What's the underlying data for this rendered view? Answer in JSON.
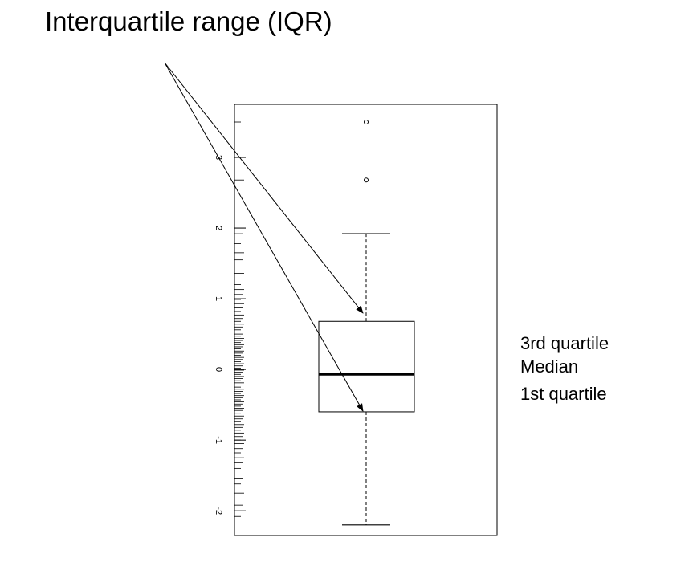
{
  "annotation_title": "Interquartile range (IQR)",
  "labels": {
    "third_quartile": "3rd quartile",
    "median": "Median",
    "first_quartile": "1st quartile"
  },
  "chart_data": {
    "type": "boxplot",
    "orientation": "vertical",
    "y_ticks": [
      -2,
      -1,
      0,
      1,
      2,
      3
    ],
    "y_tick_labels": [
      "-2",
      "-1",
      "0",
      "1",
      "2",
      "3"
    ],
    "ylim": [
      -2.35,
      3.75
    ],
    "box": {
      "q1": -0.6,
      "median": -0.07,
      "q3": 0.68,
      "whisker_low": -2.2,
      "whisker_high": 1.92,
      "outliers": [
        2.68,
        3.5
      ]
    },
    "rug": [
      -2.08,
      -1.92,
      -1.75,
      -1.62,
      -1.55,
      -1.48,
      -1.4,
      -1.32,
      -1.25,
      -1.18,
      -1.12,
      -1.05,
      -1.0,
      -0.95,
      -0.9,
      -0.86,
      -0.82,
      -0.78,
      -0.74,
      -0.7,
      -0.66,
      -0.62,
      -0.58,
      -0.55,
      -0.52,
      -0.49,
      -0.46,
      -0.43,
      -0.4,
      -0.37,
      -0.34,
      -0.31,
      -0.28,
      -0.25,
      -0.22,
      -0.19,
      -0.16,
      -0.13,
      -0.1,
      -0.07,
      -0.04,
      -0.01,
      0.02,
      0.05,
      0.08,
      0.11,
      0.14,
      0.17,
      0.2,
      0.23,
      0.26,
      0.29,
      0.32,
      0.35,
      0.38,
      0.41,
      0.44,
      0.47,
      0.5,
      0.53,
      0.56,
      0.6,
      0.64,
      0.68,
      0.72,
      0.77,
      0.82,
      0.87,
      0.93,
      0.99,
      1.06,
      1.13,
      1.2,
      1.28,
      1.36,
      1.45,
      1.55,
      1.65,
      1.78,
      1.92,
      2.68,
      3.5
    ],
    "grid": false
  }
}
